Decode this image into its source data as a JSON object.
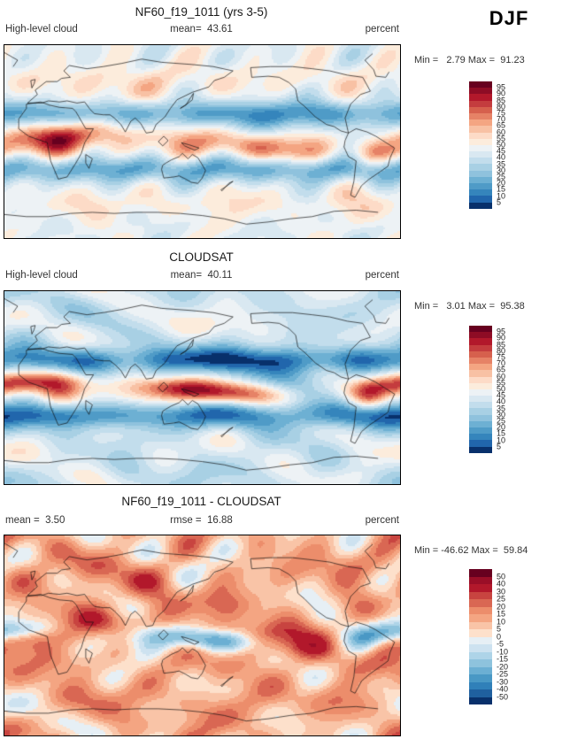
{
  "figure": {
    "season_label": "DJF"
  },
  "panels": [
    {
      "title": "NF60_f19_1011 (yrs 3-5)",
      "left_label": "High-level cloud",
      "center_label": "mean=  43.61",
      "unit_label": "percent",
      "minmax_label": "Min =   2.79 Max =  91.23"
    },
    {
      "title": "CLOUDSAT",
      "left_label": "High-level cloud",
      "center_label": "mean=  40.11",
      "unit_label": "percent",
      "minmax_label": "Min =   3.01 Max =  95.38"
    },
    {
      "title": "NF60_f19_1011 - CLOUDSAT",
      "left_label": "mean =  3.50",
      "center_label": "rmse =  16.88",
      "unit_label": "percent",
      "minmax_label": "Min = -46.62 Max =  59.84"
    }
  ],
  "colorbars": {
    "cloud": {
      "labels": [
        "95",
        "90",
        "85",
        "80",
        "75",
        "70",
        "65",
        "60",
        "55",
        "50",
        "45",
        "40",
        "35",
        "30",
        "25",
        "20",
        "15",
        "10",
        "5"
      ],
      "colors": [
        "#67001f",
        "#8e0c25",
        "#b2182b",
        "#c43c3e",
        "#d6604d",
        "#e68266",
        "#f4a582",
        "#f8c1a4",
        "#fddbc7",
        "#fcecdc",
        "#edf2f5",
        "#d9e8f1",
        "#c2ddec",
        "#a8d0e4",
        "#8fc2dd",
        "#6db0d3",
        "#4f9bc7",
        "#3585bc",
        "#2166ac",
        "#08306b"
      ]
    },
    "diff": {
      "labels": [
        "50",
        "40",
        "30",
        "25",
        "20",
        "15",
        "10",
        "5",
        "0",
        "-5",
        "-10",
        "-15",
        "-20",
        "-25",
        "-30",
        "-40",
        "-50"
      ],
      "colors": [
        "#67001f",
        "#9a0e27",
        "#b2182b",
        "#c84440",
        "#d96753",
        "#ec8d6b",
        "#f4a582",
        "#f9c4a7",
        "#fde0cb",
        "#e6eff5",
        "#cde2f0",
        "#aed4e8",
        "#8ec3dd",
        "#6bafd3",
        "#4998c5",
        "#3080b9",
        "#1f609f",
        "#08306b"
      ]
    }
  },
  "chart_data": {
    "type": "heatmap",
    "subtype": "filled-contour global lat-lon maps with coastlines",
    "season": "DJF",
    "variable": "High-level cloud",
    "units": "percent",
    "legend_position": "right",
    "panels": [
      {
        "title": "NF60_f19_1011 (yrs 3-5)",
        "mean": 43.61,
        "min": 2.79,
        "max": 91.23,
        "contour_levels": [
          5,
          10,
          15,
          20,
          25,
          30,
          35,
          40,
          45,
          50,
          55,
          60,
          65,
          70,
          75,
          80,
          85,
          90,
          95
        ]
      },
      {
        "title": "CLOUDSAT",
        "mean": 40.11,
        "min": 3.01,
        "max": 95.38,
        "contour_levels": [
          5,
          10,
          15,
          20,
          25,
          30,
          35,
          40,
          45,
          50,
          55,
          60,
          65,
          70,
          75,
          80,
          85,
          90,
          95
        ]
      },
      {
        "title": "NF60_f19_1011 - CLOUDSAT",
        "mean": 3.5,
        "rmse": 16.88,
        "min": -46.62,
        "max": 59.84,
        "contour_levels": [
          -50,
          -40,
          -30,
          -25,
          -20,
          -15,
          -10,
          -5,
          0,
          5,
          10,
          15,
          20,
          25,
          30,
          40,
          50
        ]
      }
    ],
    "palette_note": "diverging red-blue; red = high values, blue = low values"
  }
}
